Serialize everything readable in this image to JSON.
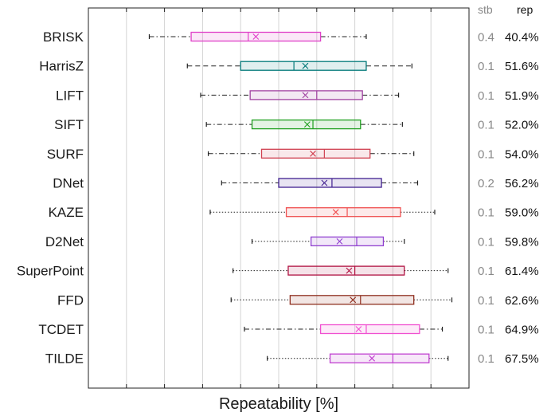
{
  "chart_data": {
    "type": "boxplot",
    "xlabel": "Repeatability [%]",
    "grid": true,
    "column_headers": {
      "stability": "stb",
      "repeatability": "rep"
    },
    "xlim": [
      0,
      100
    ],
    "series": [
      {
        "name": "BRISK",
        "color": "#e040c8",
        "whisker": "dashdot",
        "stb": "0.4",
        "rep": "40.4%",
        "whisker_low": 16,
        "q1": 27,
        "median": 42,
        "q3": 61,
        "whisker_high": 73,
        "mean": 44
      },
      {
        "name": "HarrisZ",
        "color": "#007878",
        "whisker": "dashed",
        "stb": "0.1",
        "rep": "51.6%",
        "whisker_low": 26,
        "q1": 40,
        "median": 54,
        "q3": 73,
        "whisker_high": 85,
        "mean": 57
      },
      {
        "name": "LIFT",
        "color": "#a040a0",
        "whisker": "dashdot",
        "stb": "0.1",
        "rep": "51.9%",
        "whisker_low": 29.5,
        "q1": 42.5,
        "median": 60,
        "q3": 72,
        "whisker_high": 81.5,
        "mean": 57
      },
      {
        "name": "SIFT",
        "color": "#20a020",
        "whisker": "dashdot",
        "stb": "0.1",
        "rep": "52.0%",
        "whisker_low": 31,
        "q1": 43,
        "median": 59,
        "q3": 71.5,
        "whisker_high": 82.5,
        "mean": 57.5
      },
      {
        "name": "SURF",
        "color": "#d04050",
        "whisker": "dashdot",
        "stb": "0.1",
        "rep": "54.0%",
        "whisker_low": 31.5,
        "q1": 45.5,
        "median": 62,
        "q3": 74,
        "whisker_high": 85.5,
        "mean": 59
      },
      {
        "name": "DNet",
        "color": "#402090",
        "whisker": "dashdot",
        "stb": "0.2",
        "rep": "56.2%",
        "whisker_low": 35,
        "q1": 50,
        "median": 64,
        "q3": 77,
        "whisker_high": 86.5,
        "mean": 62
      },
      {
        "name": "KAZE",
        "color": "#f05050",
        "whisker": "dotted",
        "stb": "0.1",
        "rep": "59.0%",
        "whisker_low": 32,
        "q1": 52,
        "median": 68,
        "q3": 82,
        "whisker_high": 91,
        "mean": 65
      },
      {
        "name": "D2Net",
        "color": "#9040d0",
        "whisker": "dotted",
        "stb": "0.1",
        "rep": "59.8%",
        "whisker_low": 43,
        "q1": 58.5,
        "median": 70.5,
        "q3": 77.5,
        "whisker_high": 83,
        "mean": 66
      },
      {
        "name": "SuperPoint",
        "color": "#b01040",
        "whisker": "dotted",
        "stb": "0.1",
        "rep": "61.4%",
        "whisker_low": 38,
        "q1": 52.5,
        "median": 70,
        "q3": 83,
        "whisker_high": 94.5,
        "mean": 68.5
      },
      {
        "name": "FFD",
        "color": "#903020",
        "whisker": "dotted",
        "stb": "0.1",
        "rep": "62.6%",
        "whisker_low": 37.5,
        "q1": 53,
        "median": 71.5,
        "q3": 85.5,
        "whisker_high": 95.5,
        "mean": 69.5
      },
      {
        "name": "TCDET",
        "color": "#f050d0",
        "whisker": "dashdot",
        "stb": "0.1",
        "rep": "64.9%",
        "whisker_low": 41,
        "q1": 61,
        "median": 73,
        "q3": 87,
        "whisker_high": 93,
        "mean": 71
      },
      {
        "name": "TILDE",
        "color": "#c040d0",
        "whisker": "dotted",
        "stb": "0.1",
        "rep": "67.5%",
        "whisker_low": 47,
        "q1": 63.5,
        "median": 80,
        "q3": 89.5,
        "whisker_high": 94.5,
        "mean": 74.5
      }
    ]
  }
}
